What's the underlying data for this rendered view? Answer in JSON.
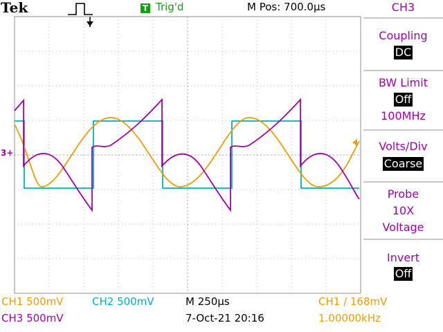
{
  "header": {
    "brand": "Tek",
    "trigger_box": "T",
    "trigger_status": "Trig'd",
    "m_pos": "M Pos: 700.0µs"
  },
  "side_menu": {
    "channel_title": "CH3",
    "coupling": {
      "label": "Coupling",
      "value": "DC"
    },
    "bw_limit": {
      "label": "BW Limit",
      "value": "Off",
      "freq": "100MHz"
    },
    "volts_div": {
      "label": "Volts/Div",
      "value": "Coarse"
    },
    "probe": {
      "label": "Probe",
      "atten": "10X",
      "type": "Voltage"
    },
    "invert": {
      "label": "Invert",
      "value": "Off"
    }
  },
  "status_bar": {
    "ch1_scale": "CH1  500mV",
    "ch2_scale": "CH2  500mV",
    "ch3_scale": "CH3  500mV",
    "timebase": "M 250µs",
    "datetime": "7-Oct-21 20:16",
    "trigger_level": "CH1 ∕ 168mV",
    "frequency": "1.00000kHz"
  },
  "markers": {
    "ch3_marker": "3+"
  },
  "colors": {
    "ch1": "#f09a00",
    "ch2": "#00b0b8",
    "ch3": "#a000a8",
    "trigger": "#10a010",
    "grid": "#b4b4b4"
  }
}
